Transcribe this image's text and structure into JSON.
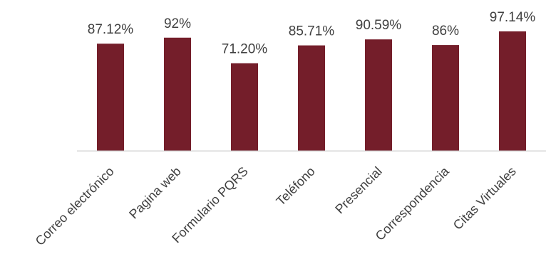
{
  "chart_data": {
    "type": "bar",
    "categories": [
      "Correo electrónico",
      "Pagina web",
      "Formulario PQRS",
      "Teléfono",
      "Presencial",
      "Correspondencia",
      "Citas Virtuales"
    ],
    "values": [
      87.12,
      92,
      71.2,
      85.71,
      90.59,
      86,
      97.14
    ],
    "data_labels": [
      "87.12%",
      "92%",
      "71.20%",
      "85.71%",
      "90.59%",
      "86%",
      "97.14%"
    ],
    "ylim": [
      0,
      100
    ],
    "grid": false,
    "legend": "none",
    "bar_color": "#741E2A",
    "axis_color": "#d0d0d0",
    "text_color": "#404040"
  }
}
